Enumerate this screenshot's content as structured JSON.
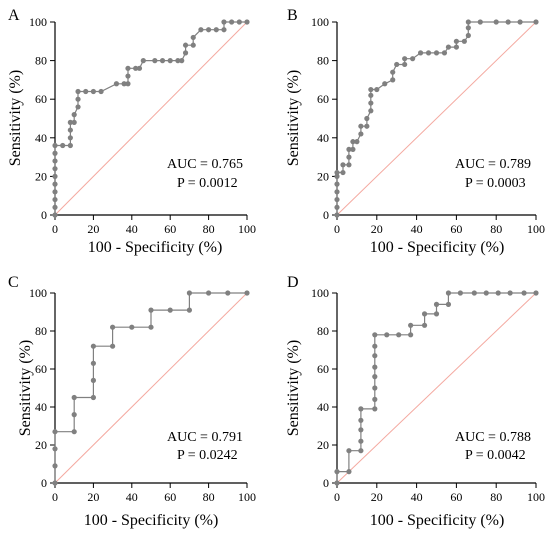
{
  "chart_data": [
    {
      "panel": "A",
      "type": "line",
      "xlabel": "100 - Specificity (%)",
      "ylabel": "Sensitivity (%)",
      "xlim": [
        0,
        100
      ],
      "ylim": [
        0,
        100
      ],
      "xticks": [
        0,
        20,
        40,
        60,
        80,
        100
      ],
      "yticks": [
        0,
        20,
        40,
        60,
        80,
        100
      ],
      "auc_text": "AUC = 0.765",
      "p_text": "P = 0.0012",
      "reference_color": "#f4a9a0",
      "curve_color": "#808080",
      "curve": [
        [
          0,
          0
        ],
        [
          0,
          4
        ],
        [
          0,
          8
        ],
        [
          0,
          12
        ],
        [
          0,
          16
        ],
        [
          0,
          20
        ],
        [
          0,
          24
        ],
        [
          0,
          28
        ],
        [
          0,
          32
        ],
        [
          0,
          36
        ],
        [
          4,
          36
        ],
        [
          8,
          36
        ],
        [
          8,
          40
        ],
        [
          8,
          44
        ],
        [
          8,
          48
        ],
        [
          10,
          48
        ],
        [
          10,
          52
        ],
        [
          12,
          56
        ],
        [
          12,
          60
        ],
        [
          12,
          64
        ],
        [
          16,
          64
        ],
        [
          20,
          64
        ],
        [
          24,
          64
        ],
        [
          32,
          68
        ],
        [
          36,
          68
        ],
        [
          38,
          68
        ],
        [
          38,
          72
        ],
        [
          38,
          76
        ],
        [
          42,
          76
        ],
        [
          44,
          76
        ],
        [
          46,
          80
        ],
        [
          52,
          80
        ],
        [
          56,
          80
        ],
        [
          60,
          80
        ],
        [
          64,
          80
        ],
        [
          66,
          80
        ],
        [
          68,
          84
        ],
        [
          68,
          88
        ],
        [
          72,
          88
        ],
        [
          72,
          92
        ],
        [
          76,
          96
        ],
        [
          80,
          96
        ],
        [
          84,
          96
        ],
        [
          88,
          96
        ],
        [
          88,
          100
        ],
        [
          92,
          100
        ],
        [
          96,
          100
        ],
        [
          100,
          100
        ]
      ]
    },
    {
      "panel": "B",
      "type": "line",
      "xlabel": "100 - Specificity (%)",
      "ylabel": "Sensitivity (%)",
      "xlim": [
        0,
        100
      ],
      "ylim": [
        0,
        100
      ],
      "xticks": [
        0,
        20,
        40,
        60,
        80,
        100
      ],
      "yticks": [
        0,
        20,
        40,
        60,
        80,
        100
      ],
      "auc_text": "AUC = 0.789",
      "p_text": "P = 0.0003",
      "reference_color": "#f4a9a0",
      "curve_color": "#808080",
      "curve": [
        [
          0,
          0
        ],
        [
          0,
          4
        ],
        [
          0,
          8
        ],
        [
          0,
          12
        ],
        [
          0,
          16
        ],
        [
          0,
          20
        ],
        [
          0,
          22
        ],
        [
          3,
          22
        ],
        [
          3,
          26
        ],
        [
          6,
          26
        ],
        [
          6,
          30
        ],
        [
          6,
          34
        ],
        [
          8,
          34
        ],
        [
          8,
          38
        ],
        [
          10,
          38
        ],
        [
          12,
          42
        ],
        [
          12,
          46
        ],
        [
          15,
          46
        ],
        [
          15,
          50
        ],
        [
          17,
          54
        ],
        [
          17,
          58
        ],
        [
          17,
          62
        ],
        [
          17,
          65
        ],
        [
          20,
          65
        ],
        [
          24,
          68
        ],
        [
          28,
          70
        ],
        [
          28,
          74
        ],
        [
          30,
          78
        ],
        [
          34,
          78
        ],
        [
          34,
          81
        ],
        [
          38,
          81
        ],
        [
          42,
          84
        ],
        [
          46,
          84
        ],
        [
          50,
          84
        ],
        [
          54,
          84
        ],
        [
          56,
          87
        ],
        [
          60,
          87
        ],
        [
          60,
          90
        ],
        [
          64,
          90
        ],
        [
          66,
          93
        ],
        [
          66,
          97
        ],
        [
          66,
          100
        ],
        [
          72,
          100
        ],
        [
          80,
          100
        ],
        [
          86,
          100
        ],
        [
          92,
          100
        ],
        [
          100,
          100
        ]
      ]
    },
    {
      "panel": "C",
      "type": "line",
      "xlabel": "100 - Specificity (%)",
      "ylabel": "Sensitivity (%)",
      "xlim": [
        0,
        100
      ],
      "ylim": [
        0,
        100
      ],
      "xticks": [
        0,
        20,
        40,
        60,
        80,
        100
      ],
      "yticks": [
        0,
        20,
        40,
        60,
        80,
        100
      ],
      "auc_text": "AUC = 0.791",
      "p_text": "P = 0.0242",
      "reference_color": "#f4a9a0",
      "curve_color": "#808080",
      "curve": [
        [
          0,
          0
        ],
        [
          0,
          9
        ],
        [
          0,
          18
        ],
        [
          0,
          27
        ],
        [
          10,
          27
        ],
        [
          10,
          36
        ],
        [
          10,
          45
        ],
        [
          20,
          45
        ],
        [
          20,
          54
        ],
        [
          20,
          63
        ],
        [
          20,
          72
        ],
        [
          30,
          72
        ],
        [
          30,
          82
        ],
        [
          40,
          82
        ],
        [
          50,
          82
        ],
        [
          50,
          91
        ],
        [
          60,
          91
        ],
        [
          70,
          91
        ],
        [
          70,
          100
        ],
        [
          80,
          100
        ],
        [
          90,
          100
        ],
        [
          100,
          100
        ]
      ]
    },
    {
      "panel": "D",
      "type": "line",
      "xlabel": "100 - Specificity (%)",
      "ylabel": "Sensitivity (%)",
      "xlim": [
        0,
        100
      ],
      "ylim": [
        0,
        100
      ],
      "xticks": [
        0,
        20,
        40,
        60,
        80,
        100
      ],
      "yticks": [
        0,
        20,
        40,
        60,
        80,
        100
      ],
      "auc_text": "AUC = 0.788",
      "p_text": "P = 0.0042",
      "reference_color": "#f4a9a0",
      "curve_color": "#808080",
      "curve": [
        [
          0,
          0
        ],
        [
          0,
          6
        ],
        [
          6,
          6
        ],
        [
          6,
          17
        ],
        [
          12,
          17
        ],
        [
          12,
          22
        ],
        [
          12,
          28
        ],
        [
          12,
          33
        ],
        [
          12,
          39
        ],
        [
          19,
          39
        ],
        [
          19,
          44
        ],
        [
          19,
          50
        ],
        [
          19,
          56
        ],
        [
          19,
          61
        ],
        [
          19,
          67
        ],
        [
          19,
          72
        ],
        [
          19,
          78
        ],
        [
          25,
          78
        ],
        [
          31,
          78
        ],
        [
          37,
          78
        ],
        [
          37,
          83
        ],
        [
          44,
          83
        ],
        [
          44,
          89
        ],
        [
          50,
          89
        ],
        [
          50,
          94
        ],
        [
          56,
          94
        ],
        [
          56,
          100
        ],
        [
          62,
          100
        ],
        [
          69,
          100
        ],
        [
          75,
          100
        ],
        [
          81,
          100
        ],
        [
          87,
          100
        ],
        [
          94,
          100
        ],
        [
          100,
          100
        ]
      ]
    }
  ]
}
